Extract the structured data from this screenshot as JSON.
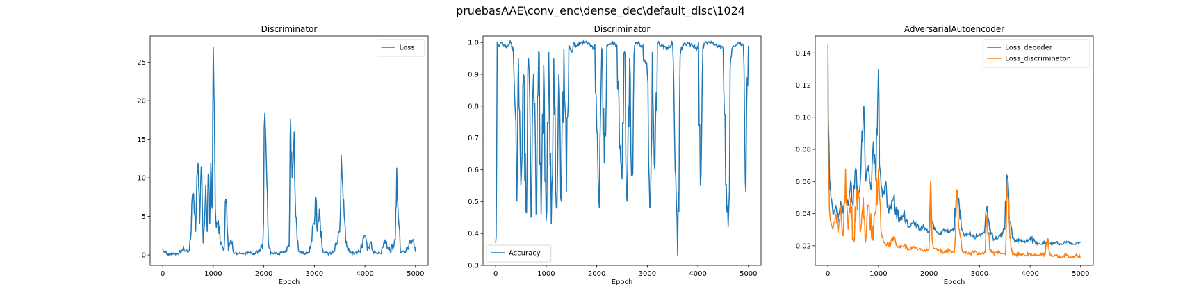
{
  "figure_title": "pruebasAAE\\conv_enc\\dense_dec\\default_disc\\1024",
  "colors": {
    "blue": "#1f77b4",
    "orange": "#ff7f0e"
  },
  "chart_data": [
    {
      "type": "line",
      "title": "Discriminator",
      "xlabel": "Epoch",
      "ylabel": "",
      "xlim": [
        -250,
        5250
      ],
      "ylim": [
        -1.35,
        28.4
      ],
      "xticks": [
        0,
        1000,
        2000,
        3000,
        4000,
        5000
      ],
      "yticks": [
        0,
        5,
        10,
        15,
        20,
        25
      ],
      "legend_position": "top-right",
      "series": [
        {
          "name": "Loss",
          "color": "#1f77b4",
          "x": [
            0,
            50,
            100,
            200,
            300,
            400,
            500,
            550,
            600,
            650,
            700,
            730,
            760,
            800,
            850,
            880,
            900,
            930,
            950,
            980,
            1000,
            1020,
            1040,
            1060,
            1100,
            1150,
            1200,
            1250,
            1300,
            1350,
            1400,
            1500,
            1600,
            1700,
            1800,
            1900,
            1980,
            2020,
            2050,
            2080,
            2100,
            2150,
            2200,
            2300,
            2400,
            2500,
            2530,
            2560,
            2600,
            2630,
            2660,
            2700,
            2800,
            2900,
            3000,
            3030,
            3060,
            3100,
            3150,
            3200,
            3300,
            3400,
            3500,
            3530,
            3560,
            3590,
            3620,
            3700,
            3800,
            3900,
            4000,
            4050,
            4100,
            4200,
            4300,
            4400,
            4500,
            4600,
            4630,
            4660,
            4700,
            4800,
            4900,
            4950,
            5000
          ],
          "values": [
            0.8,
            0.3,
            0.1,
            0.1,
            0.2,
            0.8,
            0.3,
            2.0,
            8.0,
            3.0,
            12.0,
            4.0,
            11.5,
            1.5,
            9.0,
            3.0,
            10.5,
            4.0,
            12.0,
            6.0,
            27.0,
            18.5,
            6.0,
            3.5,
            4.5,
            1.5,
            0.6,
            7.3,
            0.5,
            2.0,
            0.3,
            0.2,
            0.2,
            0.3,
            0.2,
            0.4,
            1.5,
            18.5,
            12.0,
            4.0,
            1.0,
            0.3,
            0.2,
            0.2,
            0.3,
            1.0,
            17.7,
            10.0,
            16.0,
            5.0,
            2.0,
            0.4,
            0.2,
            0.3,
            4.0,
            7.5,
            3.0,
            6.0,
            1.0,
            0.3,
            0.2,
            0.5,
            3.0,
            13.0,
            9.0,
            5.0,
            1.5,
            0.3,
            0.2,
            0.5,
            2.5,
            0.5,
            1.5,
            0.3,
            0.2,
            2.0,
            0.4,
            2.0,
            11.3,
            5.0,
            0.5,
            0.3,
            1.5,
            2.0,
            0.4
          ]
        }
      ]
    },
    {
      "type": "line",
      "title": "Discriminator",
      "xlabel": "Epoch",
      "ylabel": "",
      "xlim": [
        -250,
        5250
      ],
      "ylim": [
        0.3,
        1.02
      ],
      "xticks": [
        0,
        1000,
        2000,
        3000,
        4000,
        5000
      ],
      "yticks": [
        0.3,
        0.4,
        0.5,
        0.6,
        0.7,
        0.8,
        0.9,
        1.0
      ],
      "legend_position": "bottom-left",
      "series": [
        {
          "name": "Accuracy",
          "color": "#1f77b4",
          "x": [
            0,
            30,
            60,
            100,
            200,
            300,
            350,
            400,
            420,
            450,
            500,
            550,
            600,
            650,
            700,
            750,
            800,
            850,
            900,
            950,
            1000,
            1050,
            1100,
            1150,
            1200,
            1250,
            1300,
            1350,
            1400,
            1450,
            1500,
            1550,
            1600,
            1700,
            1800,
            1900,
            1950,
            2000,
            2050,
            2100,
            2150,
            2200,
            2300,
            2400,
            2450,
            2500,
            2550,
            2600,
            2650,
            2700,
            2750,
            2800,
            2900,
            3000,
            3050,
            3100,
            3150,
            3200,
            3300,
            3400,
            3500,
            3550,
            3600,
            3650,
            3700,
            3800,
            3900,
            4000,
            4050,
            4100,
            4200,
            4300,
            4400,
            4500,
            4550,
            4600,
            4650,
            4700,
            4800,
            4900,
            4950,
            5000
          ],
          "values": [
            0.37,
            1.0,
            0.99,
            1.0,
            0.99,
            1.0,
            0.97,
            0.75,
            0.5,
            0.95,
            0.55,
            0.9,
            0.47,
            0.95,
            0.45,
            0.9,
            0.46,
            0.97,
            0.46,
            0.93,
            0.44,
            0.97,
            0.43,
            0.95,
            0.48,
            0.9,
            0.5,
            0.98,
            0.53,
            0.99,
            0.97,
            1.0,
            0.99,
            1.0,
            1.0,
            0.99,
            0.98,
            0.73,
            0.48,
            0.98,
            0.62,
            0.99,
            1.0,
            0.99,
            0.67,
            0.57,
            0.97,
            0.5,
            0.95,
            0.58,
            0.99,
            1.0,
            0.99,
            0.9,
            0.48,
            0.97,
            0.6,
            1.0,
            0.99,
            0.98,
            1.0,
            0.6,
            0.33,
            0.96,
            0.99,
            1.0,
            0.99,
            0.98,
            0.55,
            0.99,
            1.0,
            1.0,
            0.99,
            0.98,
            0.55,
            0.42,
            0.95,
            0.99,
            1.0,
            0.99,
            0.53,
            0.99
          ]
        }
      ]
    },
    {
      "type": "line",
      "title": "AdversarialAutoencoder",
      "xlabel": "Epoch",
      "ylabel": "",
      "xlim": [
        -250,
        5250
      ],
      "ylim": [
        0.0078,
        0.1505
      ],
      "xticks": [
        0,
        1000,
        2000,
        3000,
        4000,
        5000
      ],
      "yticks": [
        0.02,
        0.04,
        0.06,
        0.08,
        0.1,
        0.12,
        0.14
      ],
      "legend_position": "top-right",
      "series": [
        {
          "name": "Loss_decoder",
          "color": "#1f77b4",
          "x": [
            0,
            15,
            30,
            60,
            100,
            150,
            200,
            250,
            300,
            350,
            400,
            450,
            500,
            550,
            600,
            650,
            700,
            750,
            800,
            850,
            900,
            950,
            1000,
            1020,
            1040,
            1080,
            1150,
            1200,
            1300,
            1400,
            1500,
            1600,
            1700,
            1800,
            1900,
            2000,
            2030,
            2060,
            2100,
            2200,
            2300,
            2400,
            2500,
            2550,
            2600,
            2650,
            2700,
            2800,
            2900,
            3000,
            3100,
            3150,
            3200,
            3300,
            3400,
            3500,
            3550,
            3600,
            3650,
            3700,
            3800,
            3900,
            4000,
            4100,
            4200,
            4300,
            4400,
            4500,
            4600,
            4700,
            4800,
            4900,
            5000
          ],
          "values": [
            0.145,
            0.09,
            0.065,
            0.05,
            0.04,
            0.045,
            0.035,
            0.048,
            0.04,
            0.055,
            0.045,
            0.06,
            0.045,
            0.068,
            0.05,
            0.065,
            0.105,
            0.06,
            0.07,
            0.055,
            0.085,
            0.06,
            0.13,
            0.07,
            0.065,
            0.05,
            0.06,
            0.04,
            0.05,
            0.035,
            0.04,
            0.032,
            0.035,
            0.03,
            0.032,
            0.028,
            0.055,
            0.035,
            0.03,
            0.027,
            0.03,
            0.028,
            0.03,
            0.055,
            0.045,
            0.03,
            0.026,
            0.028,
            0.025,
            0.027,
            0.028,
            0.045,
            0.03,
            0.024,
            0.026,
            0.03,
            0.063,
            0.035,
            0.025,
            0.022,
            0.024,
            0.022,
            0.025,
            0.022,
            0.021,
            0.022,
            0.021,
            0.022,
            0.021,
            0.022,
            0.022,
            0.021,
            0.022
          ]
        },
        {
          "name": "Loss_discriminator",
          "color": "#ff7f0e",
          "x": [
            0,
            15,
            30,
            60,
            100,
            150,
            200,
            250,
            300,
            350,
            400,
            450,
            500,
            600,
            650,
            700,
            750,
            800,
            900,
            1000,
            1050,
            1100,
            1200,
            1300,
            1400,
            1500,
            1600,
            1700,
            1800,
            1900,
            2000,
            2030,
            2060,
            2100,
            2200,
            2300,
            2400,
            2500,
            2550,
            2600,
            2650,
            2700,
            2800,
            2900,
            3000,
            3100,
            3150,
            3200,
            3300,
            3400,
            3500,
            3550,
            3600,
            3650,
            3700,
            3800,
            3900,
            4000,
            4100,
            4200,
            4300,
            4350,
            4400,
            4500,
            4600,
            4700,
            4800,
            4900,
            5000
          ],
          "values": [
            0.145,
            0.06,
            0.042,
            0.035,
            0.03,
            0.04,
            0.028,
            0.045,
            0.026,
            0.068,
            0.03,
            0.05,
            0.025,
            0.055,
            0.03,
            0.05,
            0.023,
            0.045,
            0.023,
            0.068,
            0.03,
            0.022,
            0.02,
            0.025,
            0.019,
            0.02,
            0.018,
            0.019,
            0.018,
            0.017,
            0.018,
            0.06,
            0.025,
            0.018,
            0.017,
            0.016,
            0.017,
            0.016,
            0.055,
            0.03,
            0.018,
            0.016,
            0.015,
            0.016,
            0.015,
            0.016,
            0.038,
            0.018,
            0.015,
            0.016,
            0.015,
            0.06,
            0.025,
            0.015,
            0.014,
            0.015,
            0.014,
            0.015,
            0.014,
            0.014,
            0.015,
            0.025,
            0.014,
            0.014,
            0.013,
            0.014,
            0.013,
            0.014,
            0.013
          ]
        }
      ]
    }
  ]
}
